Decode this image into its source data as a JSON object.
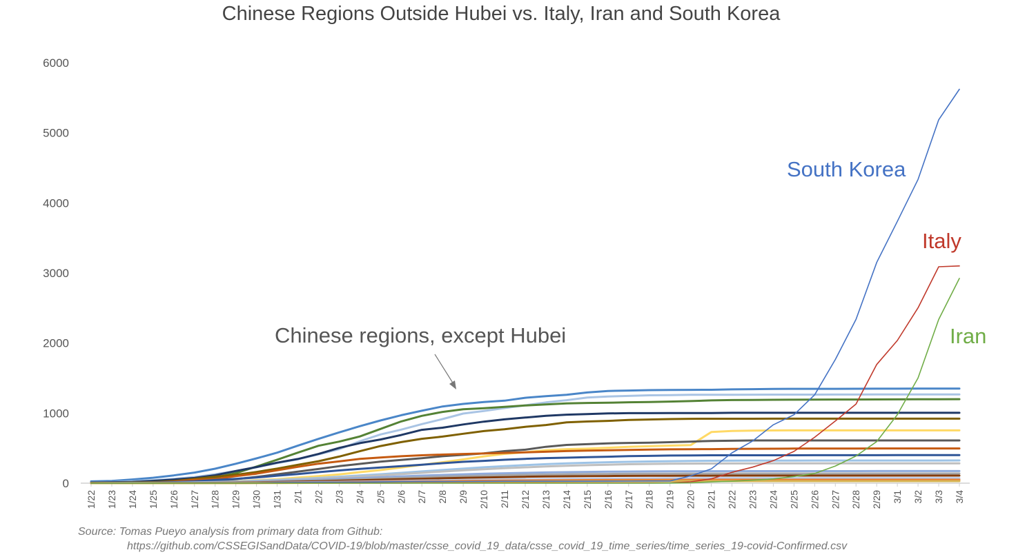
{
  "chart_data": {
    "type": "line",
    "title": "Chinese Regions Outside Hubei vs. Italy, Iran and South Korea",
    "xlabel": "",
    "ylabel": "",
    "ylim": [
      0,
      6000
    ],
    "yticks": [
      0,
      1000,
      2000,
      3000,
      4000,
      5000,
      6000
    ],
    "grid": false,
    "legend": "none",
    "categories": [
      "1/22",
      "1/23",
      "1/24",
      "1/25",
      "1/26",
      "1/27",
      "1/28",
      "1/29",
      "1/30",
      "1/31",
      "2/1",
      "2/2",
      "2/3",
      "2/4",
      "2/5",
      "2/6",
      "2/7",
      "2/8",
      "2/9",
      "2/10",
      "2/11",
      "2/12",
      "2/13",
      "2/14",
      "2/15",
      "2/16",
      "2/17",
      "2/18",
      "2/19",
      "2/20",
      "2/21",
      "2/22",
      "2/23",
      "2/24",
      "2/25",
      "2/26",
      "2/27",
      "2/28",
      "2/29",
      "3/1",
      "3/2",
      "3/3",
      "3/4"
    ],
    "series": [
      {
        "name": "South Korea",
        "color": "#4472c4",
        "highlight": true,
        "values": [
          1,
          1,
          2,
          2,
          3,
          4,
          4,
          4,
          4,
          11,
          12,
          15,
          15,
          16,
          19,
          23,
          24,
          24,
          25,
          27,
          28,
          28,
          28,
          28,
          28,
          29,
          30,
          31,
          31,
          104,
          204,
          433,
          602,
          833,
          977,
          1261,
          1766,
          2337,
          3150,
          3736,
          4335,
          5186,
          5621
        ]
      },
      {
        "name": "Italy",
        "color": "#c0392b",
        "highlight": true,
        "values": [
          0,
          0,
          0,
          0,
          0,
          0,
          0,
          0,
          0,
          2,
          2,
          2,
          2,
          2,
          2,
          2,
          3,
          3,
          3,
          3,
          3,
          3,
          3,
          3,
          3,
          3,
          3,
          3,
          3,
          20,
          62,
          155,
          229,
          322,
          453,
          655,
          888,
          1128,
          1694,
          2036,
          2502,
          3089,
          3100
        ]
      },
      {
        "name": "Iran",
        "color": "#70ad47",
        "highlight": true,
        "values": [
          0,
          0,
          0,
          0,
          0,
          0,
          0,
          0,
          0,
          0,
          0,
          0,
          0,
          0,
          0,
          0,
          0,
          0,
          0,
          0,
          0,
          0,
          0,
          0,
          0,
          0,
          0,
          0,
          2,
          5,
          18,
          28,
          43,
          61,
          95,
          139,
          245,
          388,
          593,
          978,
          1501,
          2336,
          2922
        ]
      },
      {
        "name": "",
        "color": "#4a86c8",
        "highlight": false,
        "values": [
          26,
          32,
          53,
          78,
          111,
          151,
          207,
          277,
          354,
          436,
          535,
          632,
          725,
          813,
          895,
          970,
          1034,
          1095,
          1131,
          1159,
          1177,
          1219,
          1241,
          1261,
          1294,
          1316,
          1322,
          1328,
          1331,
          1332,
          1333,
          1339,
          1342,
          1345,
          1347,
          1347,
          1347,
          1348,
          1349,
          1349,
          1350,
          1350,
          1350
        ]
      },
      {
        "name": "",
        "color": "#a9c4e4",
        "highlight": false,
        "values": [
          10,
          16,
          27,
          42,
          62,
          88,
          128,
          173,
          227,
          286,
          340,
          411,
          485,
          598,
          695,
          764,
          843,
          915,
          993,
          1031,
          1072,
          1111,
          1153,
          1184,
          1223,
          1236,
          1245,
          1254,
          1257,
          1261,
          1262,
          1262,
          1263,
          1264,
          1264,
          1264,
          1265,
          1265,
          1266,
          1266,
          1266,
          1266,
          1267
        ]
      },
      {
        "name": "",
        "color": "#548235",
        "highlight": false,
        "values": [
          5,
          6,
          7,
          12,
          17,
          37,
          82,
          144,
          237,
          335,
          436,
          534,
          593,
          667,
          774,
          881,
          961,
          1017,
          1054,
          1070,
          1089,
          1109,
          1124,
          1138,
          1145,
          1148,
          1155,
          1159,
          1165,
          1171,
          1181,
          1186,
          1187,
          1190,
          1191,
          1193,
          1194,
          1194,
          1195,
          1196,
          1197,
          1198,
          1199
        ]
      },
      {
        "name": "",
        "color": "#1f3864",
        "highlight": false,
        "values": [
          9,
          14,
          18,
          33,
          52,
          75,
          113,
          174,
          230,
          293,
          345,
          417,
          504,
          571,
          624,
          688,
          761,
          792,
          838,
          878,
          911,
          936,
          962,
          978,
          987,
          995,
          999,
          999,
          1000,
          1000,
          1001,
          1004,
          1004,
          1004,
          1004,
          1004,
          1004,
          1004,
          1004,
          1004,
          1004,
          1004,
          1004
        ]
      },
      {
        "name": "",
        "color": "#7f6000",
        "highlight": false,
        "values": [
          1,
          5,
          9,
          16,
          30,
          60,
          92,
          120,
          160,
          208,
          262,
          314,
          380,
          456,
          530,
          586,
          633,
          665,
          705,
          744,
          770,
          805,
          830,
          868,
          880,
          889,
          902,
          909,
          915,
          919,
          920,
          920,
          920,
          921,
          921,
          921,
          921,
          921,
          921,
          921,
          921,
          921,
          921
        ]
      },
      {
        "name": "",
        "color": "#ffd966",
        "highlight": false,
        "values": [
          0,
          1,
          2,
          3,
          4,
          8,
          16,
          29,
          43,
          57,
          80,
          101,
          126,
          157,
          187,
          223,
          262,
          299,
          339,
          383,
          418,
          442,
          471,
          486,
          493,
          506,
          518,
          527,
          536,
          543,
          730,
          745,
          750,
          752,
          753,
          753,
          753,
          753,
          753,
          753,
          753,
          753,
          753
        ]
      },
      {
        "name": "",
        "color": "#595959",
        "highlight": false,
        "values": [
          1,
          3,
          4,
          10,
          15,
          27,
          34,
          58,
          90,
          127,
          164,
          203,
          243,
          275,
          307,
          331,
          357,
          385,
          404,
          425,
          457,
          478,
          519,
          546,
          557,
          569,
          574,
          578,
          585,
          593,
          603,
          606,
          610,
          610,
          610,
          610,
          610,
          610,
          610,
          610,
          610,
          610,
          610
        ]
      },
      {
        "name": "",
        "color": "#c55a11",
        "highlight": false,
        "values": [
          2,
          4,
          5,
          8,
          23,
          46,
          59,
          100,
          136,
          184,
          233,
          278,
          311,
          347,
          367,
          385,
          398,
          408,
          417,
          424,
          432,
          440,
          449,
          458,
          464,
          469,
          475,
          480,
          483,
          485,
          486,
          489,
          491,
          492,
          494,
          495,
          495,
          495,
          496,
          496,
          496,
          496,
          496
        ]
      },
      {
        "name": "",
        "color": "#2f5597",
        "highlight": false,
        "values": [
          1,
          2,
          5,
          9,
          15,
          26,
          45,
          61,
          81,
          107,
          131,
          157,
          182,
          205,
          223,
          243,
          264,
          285,
          305,
          319,
          334,
          347,
          358,
          364,
          372,
          378,
          386,
          390,
          394,
          396,
          398,
          398,
          398,
          398,
          398,
          399,
          399,
          399,
          399,
          400,
          400,
          400,
          401
        ]
      },
      {
        "name": "",
        "color": "#9dc3e6",
        "highlight": false,
        "values": [
          0,
          1,
          2,
          4,
          7,
          12,
          18,
          25,
          35,
          47,
          60,
          75,
          92,
          110,
          128,
          148,
          168,
          188,
          208,
          227,
          243,
          258,
          271,
          282,
          291,
          299,
          305,
          310,
          314,
          318,
          320,
          321,
          322,
          323,
          323,
          324,
          324,
          324,
          324,
          324,
          324,
          324,
          325
        ]
      },
      {
        "name": "",
        "color": "#bfbfbf",
        "highlight": false,
        "values": [
          0,
          1,
          1,
          3,
          5,
          9,
          14,
          20,
          28,
          38,
          50,
          63,
          78,
          95,
          112,
          130,
          148,
          166,
          183,
          199,
          213,
          226,
          238,
          248,
          257,
          264,
          270,
          274,
          277,
          279,
          280,
          281,
          281,
          282,
          282,
          282,
          282,
          282,
          282,
          282,
          282,
          282,
          282
        ]
      },
      {
        "name": "",
        "color": "#8faadc",
        "highlight": false,
        "values": [
          0,
          0,
          1,
          2,
          4,
          7,
          11,
          16,
          23,
          31,
          40,
          50,
          61,
          73,
          85,
          97,
          108,
          118,
          127,
          135,
          142,
          148,
          153,
          157,
          161,
          164,
          166,
          168,
          169,
          170,
          171,
          171,
          172,
          172,
          172,
          172,
          172,
          172,
          173,
          173,
          173,
          173,
          173
        ]
      },
      {
        "name": "",
        "color": "#a6a6a6",
        "highlight": false,
        "values": [
          0,
          0,
          1,
          2,
          3,
          5,
          8,
          12,
          17,
          23,
          30,
          38,
          47,
          56,
          66,
          75,
          84,
          93,
          101,
          108,
          114,
          119,
          123,
          127,
          130,
          132,
          134,
          135,
          136,
          137,
          137,
          137,
          138,
          138,
          138,
          138,
          138,
          138,
          138,
          138,
          138,
          138,
          138
        ]
      },
      {
        "name": "",
        "color": "#843c0c",
        "highlight": false,
        "values": [
          0,
          0,
          0,
          1,
          2,
          3,
          5,
          8,
          12,
          17,
          22,
          28,
          35,
          42,
          49,
          56,
          63,
          70,
          76,
          82,
          87,
          91,
          95,
          98,
          100,
          102,
          104,
          105,
          106,
          107,
          107,
          108,
          108,
          108,
          108,
          108,
          108,
          108,
          108,
          108,
          108,
          108,
          108
        ]
      },
      {
        "name": "",
        "color": "#b4c7e7",
        "highlight": false,
        "values": [
          0,
          0,
          0,
          0,
          1,
          2,
          3,
          5,
          7,
          10,
          13,
          16,
          20,
          24,
          28,
          32,
          36,
          40,
          44,
          48,
          52,
          55,
          58,
          61,
          63,
          65,
          67,
          68,
          69,
          70,
          70,
          71,
          71,
          71,
          71,
          71,
          71,
          71,
          71,
          71,
          71,
          71,
          71
        ]
      },
      {
        "name": "",
        "color": "#ed7d31",
        "highlight": false,
        "values": [
          0,
          0,
          0,
          0,
          0,
          1,
          2,
          3,
          4,
          6,
          8,
          10,
          13,
          16,
          19,
          22,
          25,
          28,
          31,
          34,
          36,
          38,
          40,
          42,
          44,
          45,
          46,
          47,
          48,
          48,
          49,
          49,
          49,
          49,
          49,
          49,
          49,
          49,
          49,
          49,
          49,
          49,
          49
        ]
      },
      {
        "name": "",
        "color": "#d6b656",
        "highlight": false,
        "values": [
          0,
          0,
          0,
          0,
          0,
          0,
          1,
          1,
          2,
          3,
          4,
          5,
          7,
          9,
          11,
          13,
          15,
          17,
          19,
          21,
          23,
          24,
          25,
          26,
          27,
          28,
          29,
          29,
          30,
          30,
          30,
          30,
          30,
          30,
          30,
          30,
          30,
          30,
          30,
          30,
          30,
          30,
          30
        ]
      }
    ],
    "annotations": [
      {
        "text": "South Korea",
        "color": "#4472c4"
      },
      {
        "text": "Italy",
        "color": "#c0392b"
      },
      {
        "text": "Iran",
        "color": "#70ad47"
      },
      {
        "text": "Chinese regions, except Hubei",
        "color": "#555555"
      }
    ]
  },
  "source": {
    "line1": "Source: Tomas Pueyo analysis from primary data from Github:",
    "line2": "https://github.com/CSSEGISandData/COVID-19/blob/master/csse_covid_19_data/csse_covid_19_time_series/time_series_19-covid-Confirmed.csv"
  }
}
